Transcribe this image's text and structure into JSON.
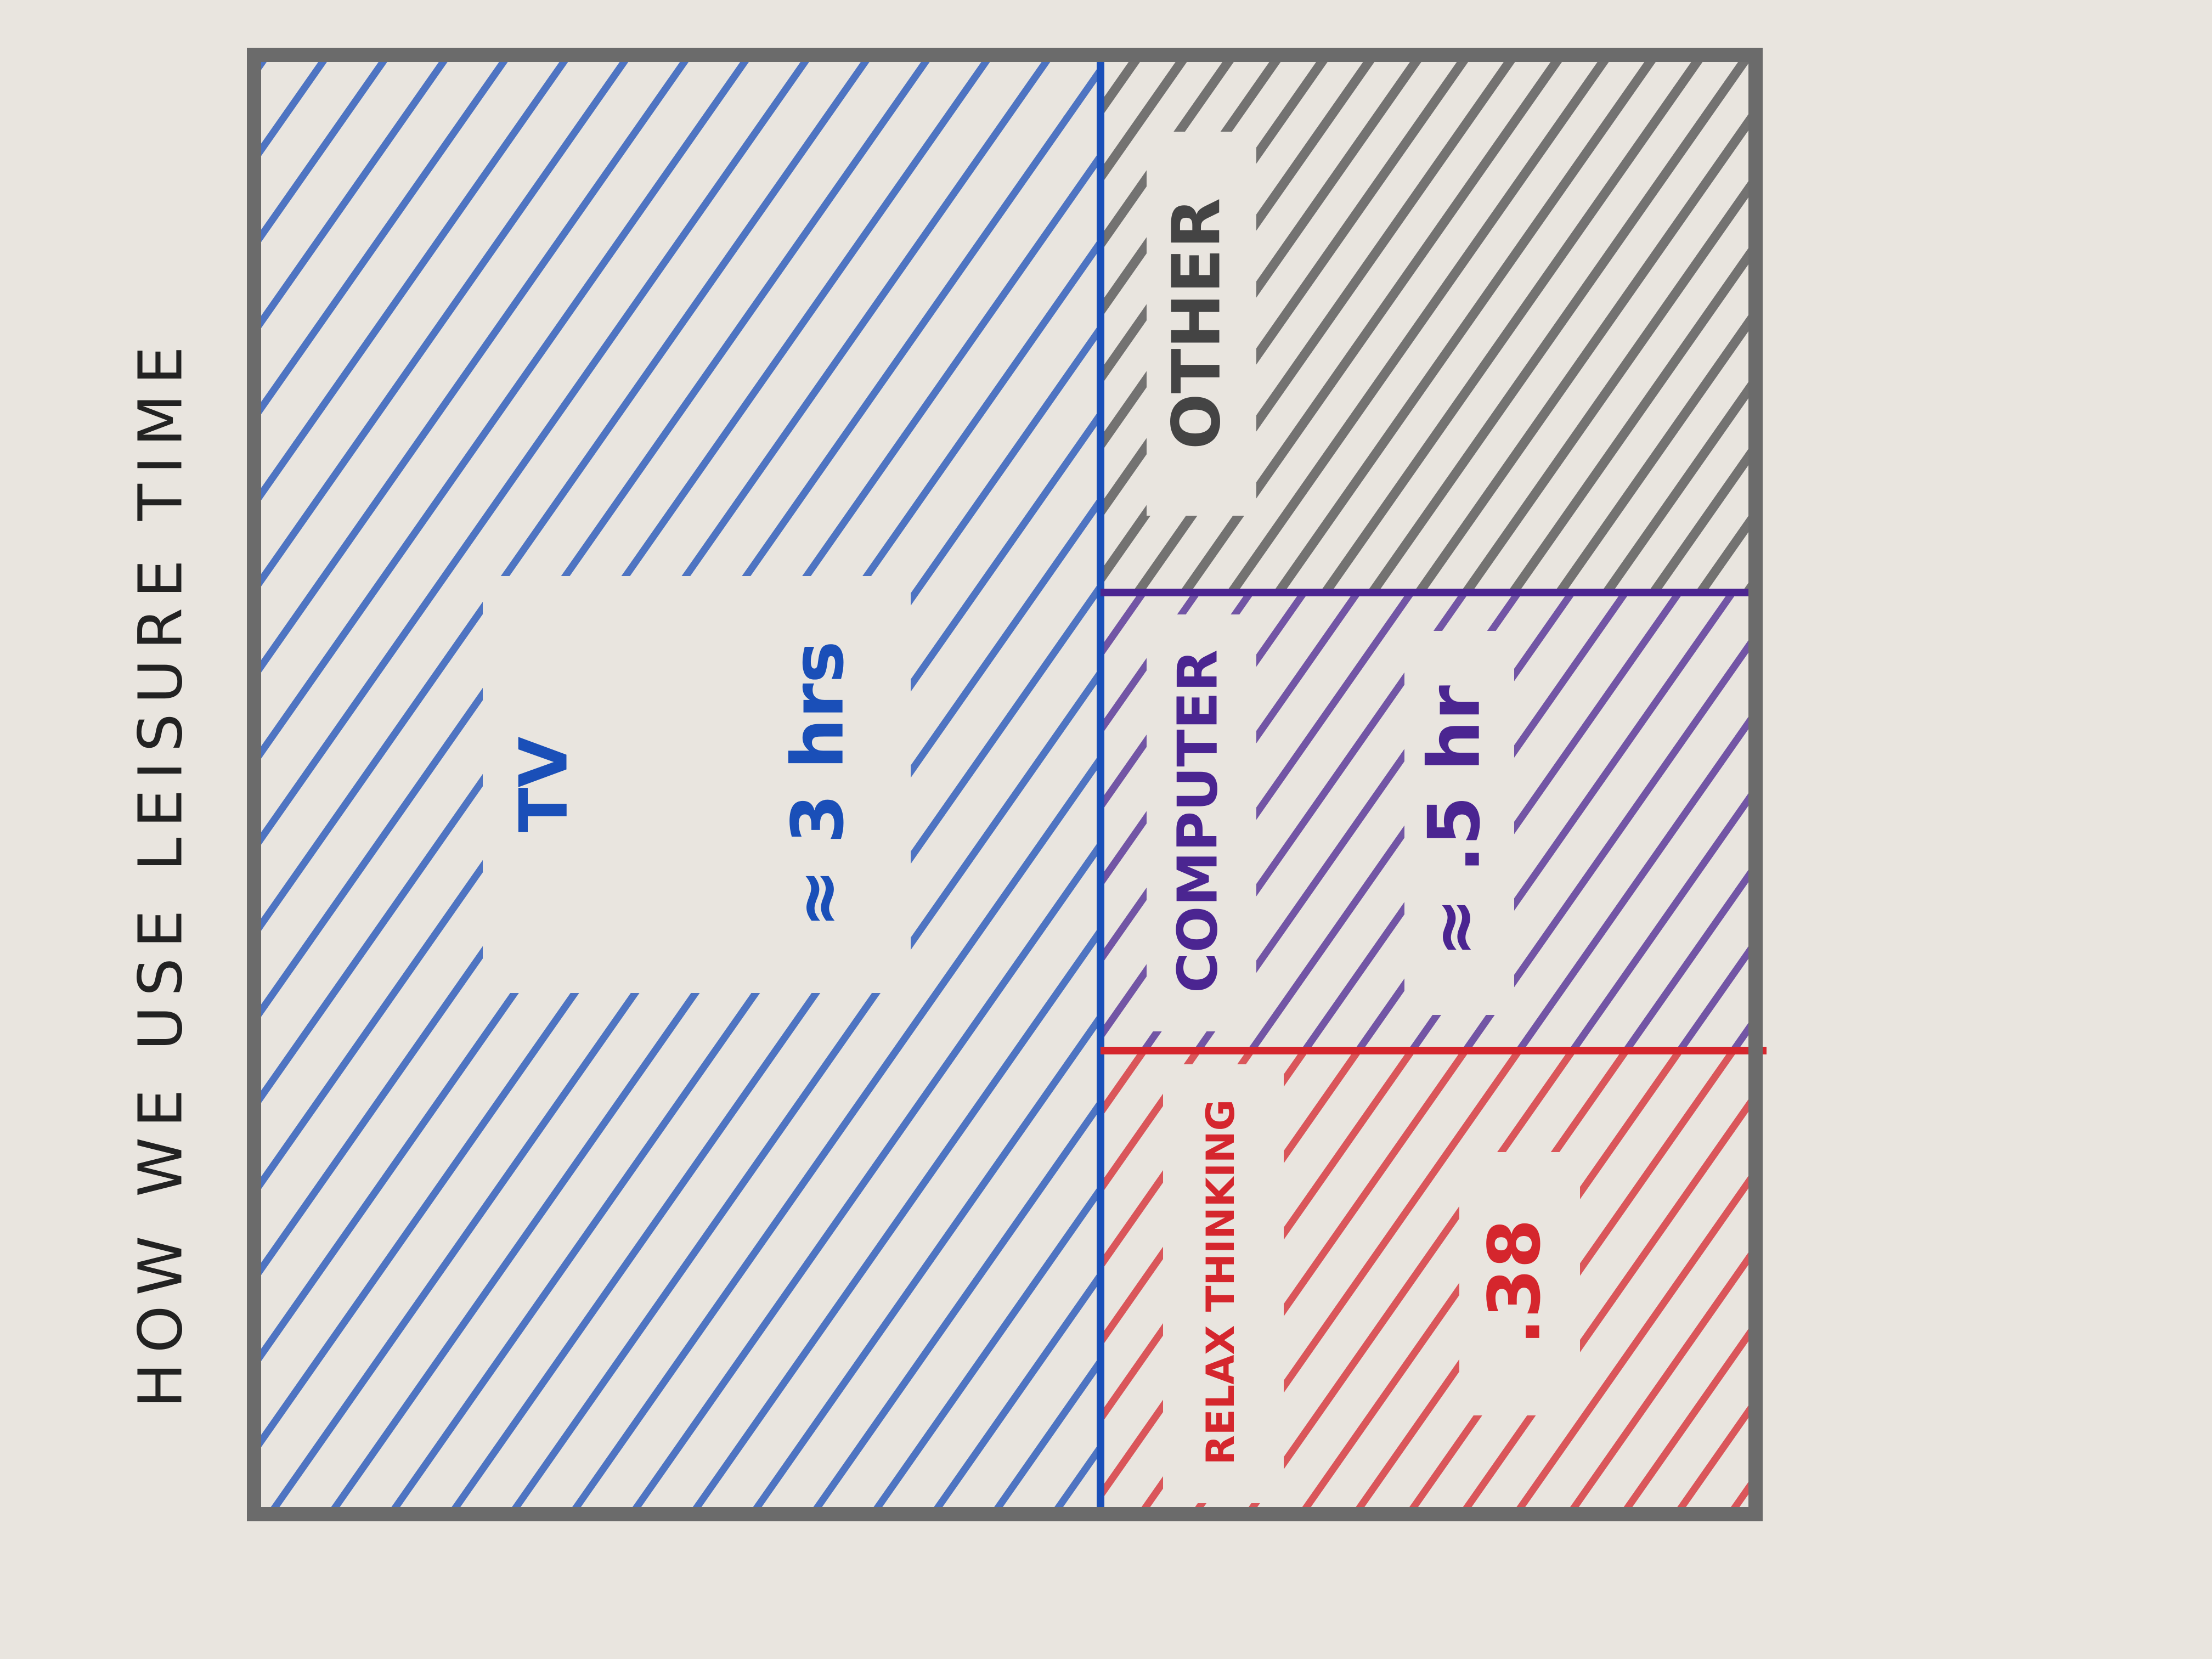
{
  "title": "HOW WE USE LEISURE TIME",
  "tiles": [
    {
      "label": "TV",
      "value": "≈ 3 hrs"
    },
    {
      "label": "OTHER"
    },
    {
      "label": "COMPUTER",
      "value": "≈ .5 hr"
    },
    {
      "label": "RELAX THINKING",
      "value": ".38"
    }
  ]
}
